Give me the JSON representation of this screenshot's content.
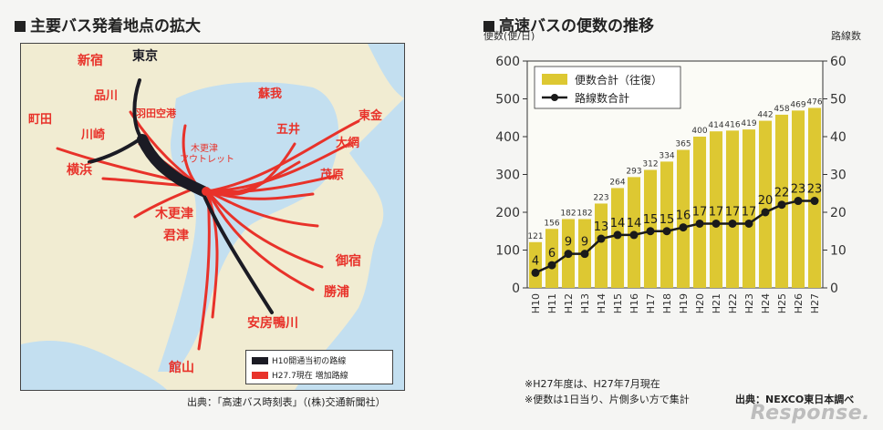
{
  "left_panel": {
    "title": "主要バス発着地点の拡大",
    "labels": {
      "shinjuku": "新宿",
      "tokyo": "東京",
      "shinagawa": "品川",
      "machida": "町田",
      "kawasaki": "川崎",
      "haneda": "羽田空港",
      "yokohama": "横浜",
      "kisarazu_outlet_1": "木更津",
      "kisarazu_outlet_2": "アウトレット",
      "soga": "蘇我",
      "goi": "五井",
      "togane": "東金",
      "oami": "大網",
      "mobara": "茂原",
      "kisarazu": "木更津",
      "kimitsu": "君津",
      "onjuku": "御宿",
      "katsuura": "勝浦",
      "awa_kamogawa": "安房鴨川",
      "tateyama": "館山"
    },
    "legend": [
      {
        "label": "H10開通当初の路線",
        "color": "#1b1b24"
      },
      {
        "label": "H27.7現在 増加路線",
        "color": "#e8322a"
      }
    ],
    "source": "出典：「高速バス時刻表」（(株)交通新聞社）"
  },
  "right_panel": {
    "title": "高速バスの便数の推移",
    "notes": [
      "※H27年度は、H27年7月現在",
      "※便数は1日当り、片側多い方で集計"
    ],
    "source": "出典：NEXCO東日本調べ"
  },
  "chart_data": {
    "type": "bar",
    "categories": [
      "H10",
      "H11",
      "H12",
      "H13",
      "H14",
      "H15",
      "H16",
      "H17",
      "H18",
      "H19",
      "H20",
      "H21",
      "H22",
      "H23",
      "H24",
      "H25",
      "H26",
      "H27"
    ],
    "series": [
      {
        "name": "便数合計（往復）",
        "type": "bar",
        "axis": "left",
        "color": "#ddc832",
        "values": [
          121,
          156,
          182,
          182,
          223,
          264,
          293,
          312,
          334,
          365,
          400,
          414,
          416,
          419,
          442,
          458,
          469,
          476
        ]
      },
      {
        "name": "路線数合計",
        "type": "line",
        "axis": "right",
        "color": "#1a1a1a",
        "values": [
          4,
          6,
          9,
          9,
          13,
          14,
          14,
          15,
          15,
          16,
          17,
          17,
          17,
          17,
          20,
          22,
          23,
          23
        ]
      }
    ],
    "ylabel_left": "便数(便/日)",
    "ylabel_right": "路線数",
    "ylim_left": [
      0,
      600
    ],
    "ylim_right": [
      0,
      60
    ],
    "yticks_left": [
      0,
      100,
      200,
      300,
      400,
      500,
      600
    ],
    "yticks_right": [
      0,
      10,
      20,
      30,
      40,
      50,
      60
    ],
    "legend_position": "top-left"
  },
  "brand": "Response."
}
